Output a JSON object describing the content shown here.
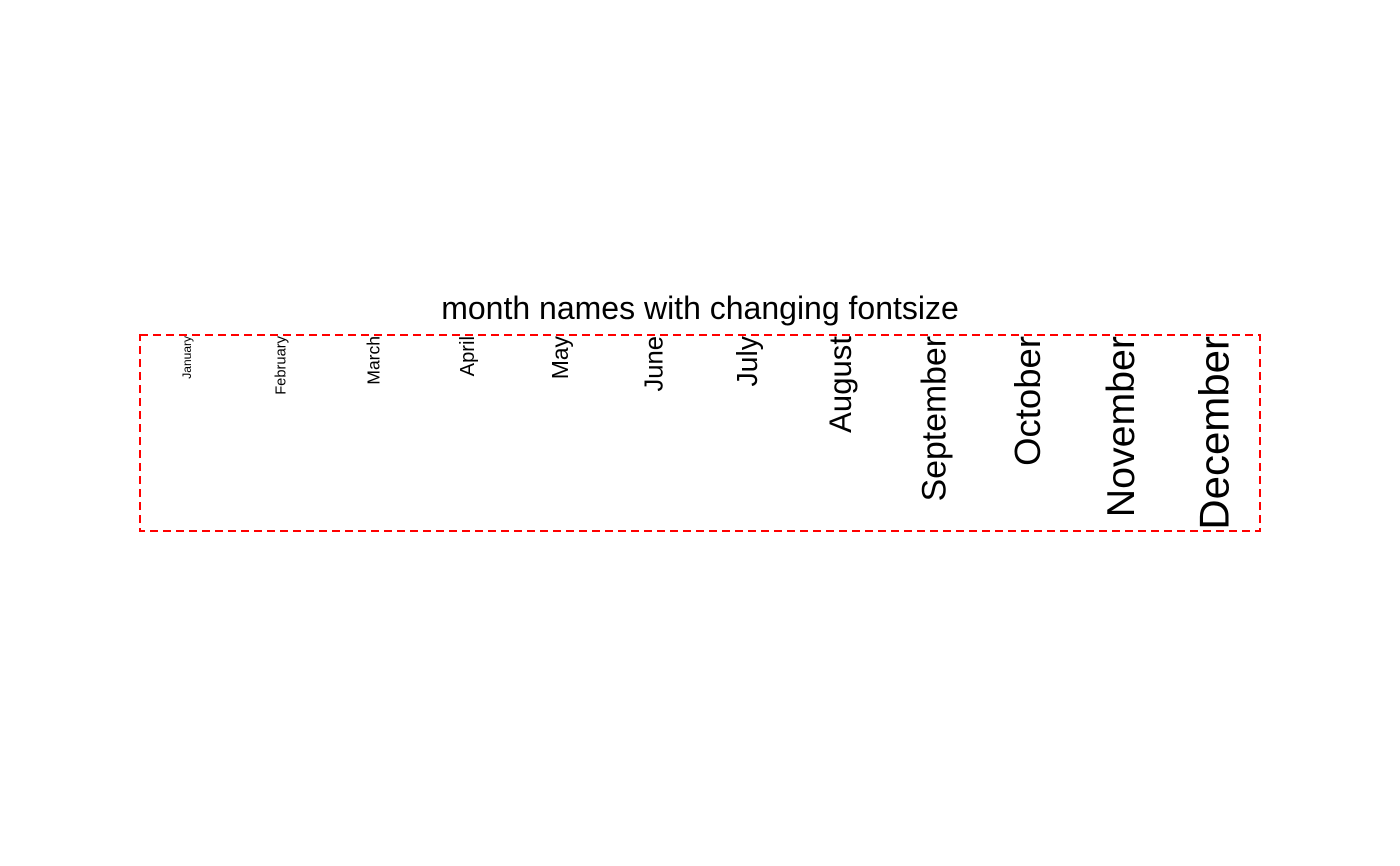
{
  "title": "month names with changing fontsize",
  "frame_color": "#ff0000",
  "text_color": "#000000",
  "months": [
    "January",
    "February",
    "March",
    "April",
    "May",
    "June",
    "July",
    "August",
    "September",
    "October",
    "November",
    "December"
  ]
}
